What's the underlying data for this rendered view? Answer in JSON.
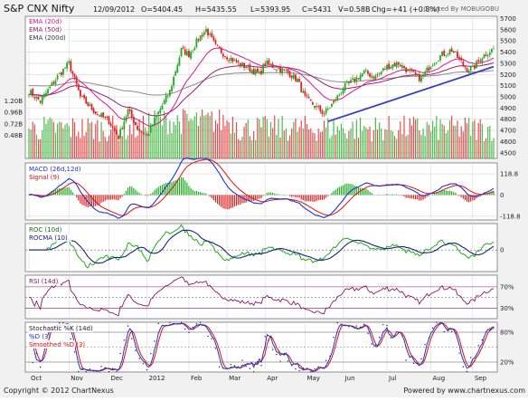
{
  "header": {
    "title": "S&P CNX Nifty",
    "date": "12/09/2012",
    "open": "O=5404.45",
    "high": "H=5435.55",
    "low": "L=5393.95",
    "close": "C=5431",
    "volume": "V=0.58B",
    "change": "Chg=+41 (+0.8%)",
    "charted_by": "Charted By MOBUGOBU"
  },
  "footer": {
    "copyright": "Copyright © 2012 ChartNexus",
    "powered_by": "Powered by www.chartnexus.com"
  },
  "colors": {
    "candle_up": "#22aa22",
    "candle_down": "#dd2222",
    "ema20": "#e0148c",
    "ema50": "#9b1d6b",
    "ema200": "#8a8a8a",
    "trendline": "#3a3acc",
    "macd": "#2233cc",
    "signal": "#dd1111",
    "roc": "#22aa22",
    "rocma": "#1a237e",
    "rsi": "#8b1a5a",
    "stoch_k": "#222222",
    "stoch_d": "#2233cc",
    "stoch_sd": "#dd1111",
    "grid": "#d8d8d8"
  },
  "chart_data": [
    {
      "type": "candlestick",
      "panel": "price",
      "series": [
        {
          "name": "EMA (20d)"
        },
        {
          "name": "EMA (50d)"
        },
        {
          "name": "EMA (200d)"
        }
      ],
      "yticks": [
        4500,
        4600,
        4700,
        4800,
        4900,
        5000,
        5100,
        5200,
        5300,
        5400,
        5500,
        5600,
        5700
      ],
      "ylim": [
        4450,
        5720
      ],
      "x_labels": [
        "Oct",
        "Nov",
        "Dec",
        "2012",
        "Feb",
        "Mar",
        "Apr",
        "May",
        "Jun",
        "Jul",
        "Aug",
        "Sep"
      ],
      "x_positions": [
        0,
        21,
        42,
        62,
        84,
        104,
        124,
        145,
        165,
        188,
        211,
        233
      ],
      "n_days": 245,
      "anchors": [
        [
          0,
          5050
        ],
        [
          6,
          4960
        ],
        [
          15,
          5180
        ],
        [
          21,
          5300
        ],
        [
          27,
          5000
        ],
        [
          35,
          4860
        ],
        [
          42,
          4780
        ],
        [
          47,
          4640
        ],
        [
          52,
          4880
        ],
        [
          57,
          4720
        ],
        [
          62,
          4650
        ],
        [
          68,
          4860
        ],
        [
          74,
          5050
        ],
        [
          80,
          5420
        ],
        [
          84,
          5380
        ],
        [
          89,
          5520
        ],
        [
          93,
          5600
        ],
        [
          98,
          5450
        ],
        [
          104,
          5360
        ],
        [
          110,
          5300
        ],
        [
          116,
          5250
        ],
        [
          121,
          5200
        ],
        [
          124,
          5300
        ],
        [
          130,
          5260
        ],
        [
          136,
          5220
        ],
        [
          141,
          5150
        ],
        [
          145,
          4990
        ],
        [
          150,
          4920
        ],
        [
          155,
          4850
        ],
        [
          160,
          4950
        ],
        [
          165,
          5080
        ],
        [
          170,
          5140
        ],
        [
          176,
          5220
        ],
        [
          182,
          5180
        ],
        [
          188,
          5270
        ],
        [
          194,
          5300
        ],
        [
          200,
          5220
        ],
        [
          206,
          5160
        ],
        [
          211,
          5290
        ],
        [
          217,
          5380
        ],
        [
          222,
          5420
        ],
        [
          226,
          5330
        ],
        [
          230,
          5250
        ],
        [
          233,
          5250
        ],
        [
          238,
          5360
        ],
        [
          244,
          5431
        ]
      ],
      "trendline": {
        "from": [
          157,
          4780
        ],
        "to": [
          244,
          5270
        ]
      }
    },
    {
      "type": "bar",
      "panel": "volume",
      "yticks": [
        "0.48B",
        "0.72B",
        "0.96B",
        "1.20B"
      ],
      "ytick_values": [
        0.48,
        0.72,
        0.96,
        1.2
      ],
      "ylim": [
        0,
        1.45
      ]
    },
    {
      "type": "line",
      "panel": "macd",
      "series": [
        {
          "name": "MACD (26d,12d)"
        },
        {
          "name": "Signal (9)"
        }
      ],
      "yticks": [
        "118.8",
        "0",
        "-118.8"
      ],
      "ytick_values": [
        118.8,
        0,
        -118.8
      ],
      "ylim": [
        -140,
        180
      ]
    },
    {
      "type": "line",
      "panel": "roc",
      "series": [
        {
          "name": "ROC (10d)"
        },
        {
          "name": "ROCMA (10)"
        }
      ],
      "yticks": [
        "0"
      ],
      "ytick_values": [
        0
      ],
      "ylim": [
        -9,
        11
      ]
    },
    {
      "type": "line",
      "panel": "rsi",
      "series": [
        {
          "name": "RSI (14d)"
        }
      ],
      "yticks": [
        "70%",
        "30%"
      ],
      "ytick_values": [
        70,
        30
      ],
      "ylim": [
        10,
        92
      ]
    },
    {
      "type": "line",
      "panel": "stochastic",
      "series": [
        {
          "name": "Stochastic %K (14d)"
        },
        {
          "name": "%D (3)"
        },
        {
          "name": "Smoothed %D (3)"
        }
      ],
      "yticks": [
        "80%",
        "20%"
      ],
      "ytick_values": [
        80,
        20
      ],
      "ylim": [
        0,
        100
      ]
    }
  ]
}
